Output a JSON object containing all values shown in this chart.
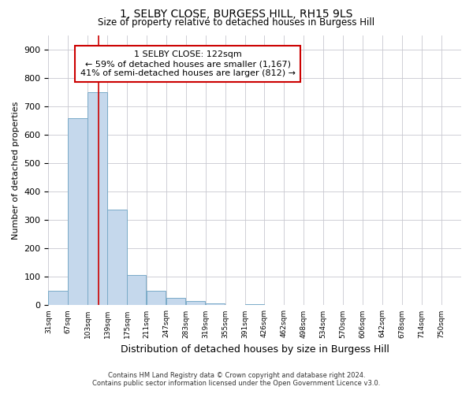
{
  "title1": "1, SELBY CLOSE, BURGESS HILL, RH15 9LS",
  "title2": "Size of property relative to detached houses in Burgess Hill",
  "xlabel": "Distribution of detached houses by size in Burgess Hill",
  "ylabel": "Number of detached properties",
  "bin_labels": [
    "31sqm",
    "67sqm",
    "103sqm",
    "139sqm",
    "175sqm",
    "211sqm",
    "247sqm",
    "283sqm",
    "319sqm",
    "355sqm",
    "391sqm",
    "426sqm",
    "462sqm",
    "498sqm",
    "534sqm",
    "570sqm",
    "606sqm",
    "642sqm",
    "678sqm",
    "714sqm",
    "750sqm"
  ],
  "bin_edges": [
    31,
    67,
    103,
    139,
    175,
    211,
    247,
    283,
    319,
    355,
    391,
    426,
    462,
    498,
    534,
    570,
    606,
    642,
    678,
    714,
    750
  ],
  "bar_values": [
    52,
    660,
    750,
    338,
    108,
    52,
    26,
    14,
    8,
    0,
    5,
    0,
    0,
    0,
    0,
    0,
    0,
    0,
    0,
    0
  ],
  "bar_color": "#c5d8ec",
  "bar_edge_color": "#7aaac8",
  "property_size": 122,
  "vline_color": "#cc0000",
  "annotation_line1": "1 SELBY CLOSE: 122sqm",
  "annotation_line2": "← 59% of detached houses are smaller (1,167)",
  "annotation_line3": "41% of semi-detached houses are larger (812) →",
  "annotation_box_color": "#ffffff",
  "annotation_box_edge_color": "#cc0000",
  "ylim": [
    0,
    950
  ],
  "yticks": [
    0,
    100,
    200,
    300,
    400,
    500,
    600,
    700,
    800,
    900
  ],
  "grid_color": "#c8c8d0",
  "background_color": "#ffffff",
  "footnote1": "Contains HM Land Registry data © Crown copyright and database right 2024.",
  "footnote2": "Contains public sector information licensed under the Open Government Licence v3.0."
}
